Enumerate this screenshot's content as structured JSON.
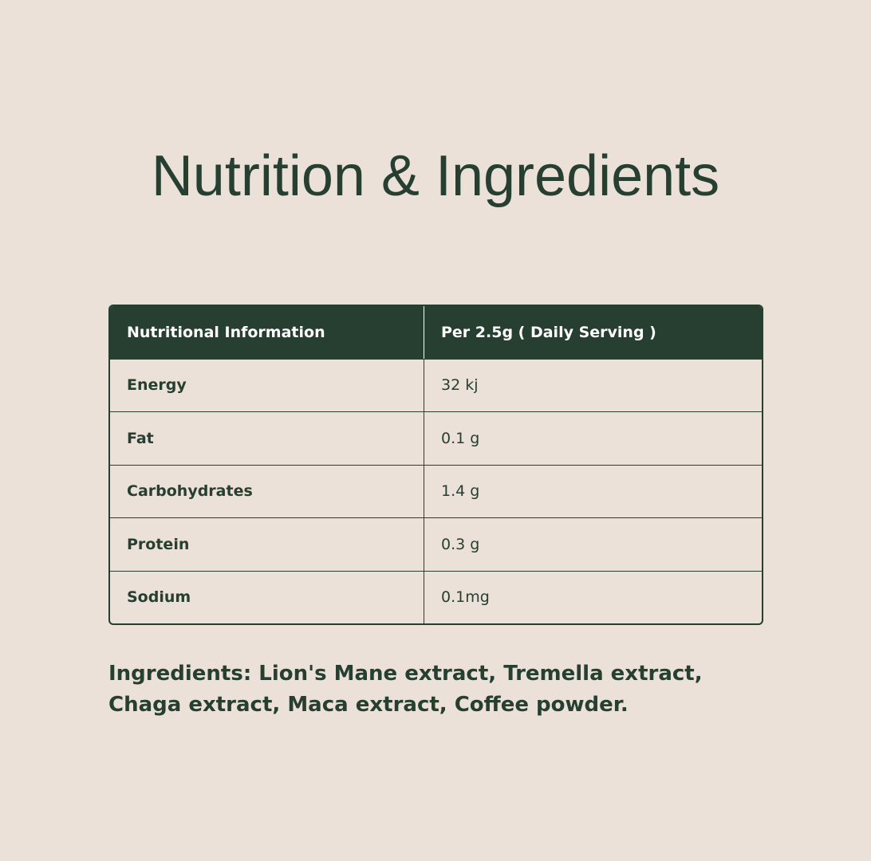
{
  "title": "Nutrition & Ingredients",
  "table": {
    "headers": [
      "Nutritional Information",
      "Per 2.5g ( Daily Serving )"
    ],
    "rows": [
      [
        "Energy",
        "32 kj"
      ],
      [
        "Fat",
        "0.1 g"
      ],
      [
        "Carbohydrates",
        "1.4 g"
      ],
      [
        "Protein",
        "0.3 g"
      ],
      [
        "Sodium",
        "0.1mg"
      ]
    ]
  },
  "ingredients": "Ingredients: Lion's Mane extract, Tremella extract, Chaga extract, Maca extract, Coffee powder."
}
